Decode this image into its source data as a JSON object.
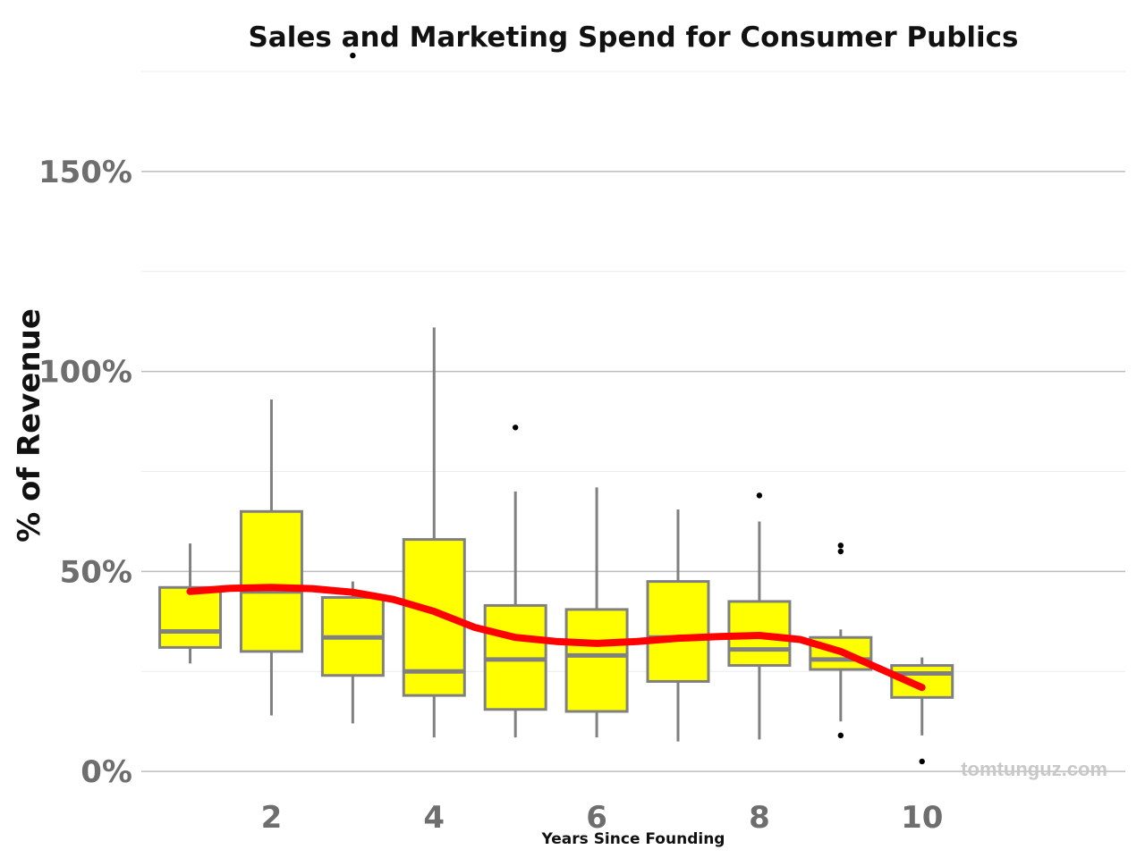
{
  "chart_data": {
    "type": "box",
    "title": "Sales and Marketing Spend for Consumer Publics",
    "xlabel": "Years Since Founding",
    "ylabel": "% of Revenue",
    "watermark": "tomtunguz.com",
    "xlim": [
      0.4,
      12.5
    ],
    "ylim": [
      -0.06,
      1.75
    ],
    "x_ticks": [
      2,
      4,
      6,
      8,
      10
    ],
    "x_tick_labels": [
      "2",
      "4",
      "6",
      "8",
      "10"
    ],
    "y_ticks": [
      0,
      0.5,
      1.0,
      1.5
    ],
    "y_tick_labels": [
      "0%",
      "50%",
      "100%",
      "150%"
    ],
    "y_minor_ticks": [
      0.25,
      0.75,
      1.25,
      1.75
    ],
    "grid": true,
    "colors": {
      "box_fill": "#ffff00",
      "box_edge": "#808080",
      "outlier": "#000000",
      "trend": "#ff0000",
      "grid": "#bdbdbd",
      "minor_grid": "#ececec"
    },
    "boxes": [
      {
        "x": 1,
        "whisker_low": 0.27,
        "q1": 0.31,
        "median": 0.35,
        "q3": 0.46,
        "whisker_high": 0.57,
        "outliers": []
      },
      {
        "x": 2,
        "whisker_low": 0.14,
        "q1": 0.3,
        "median": 0.45,
        "q3": 0.65,
        "whisker_high": 0.93,
        "outliers": []
      },
      {
        "x": 3,
        "whisker_low": 0.12,
        "q1": 0.24,
        "median": 0.335,
        "q3": 0.435,
        "whisker_high": 0.475,
        "outliers": [
          1.79
        ]
      },
      {
        "x": 4,
        "whisker_low": 0.085,
        "q1": 0.19,
        "median": 0.25,
        "q3": 0.58,
        "whisker_high": 1.11,
        "outliers": []
      },
      {
        "x": 5,
        "whisker_low": 0.085,
        "q1": 0.155,
        "median": 0.28,
        "q3": 0.415,
        "whisker_high": 0.7,
        "outliers": [
          0.86
        ]
      },
      {
        "x": 6,
        "whisker_low": 0.085,
        "q1": 0.15,
        "median": 0.29,
        "q3": 0.405,
        "whisker_high": 0.71,
        "outliers": []
      },
      {
        "x": 7,
        "whisker_low": 0.075,
        "q1": 0.225,
        "median": 0.335,
        "q3": 0.475,
        "whisker_high": 0.655,
        "outliers": []
      },
      {
        "x": 8,
        "whisker_low": 0.08,
        "q1": 0.265,
        "median": 0.305,
        "q3": 0.425,
        "whisker_high": 0.625,
        "outliers": [
          0.69
        ]
      },
      {
        "x": 9,
        "whisker_low": 0.125,
        "q1": 0.255,
        "median": 0.28,
        "q3": 0.335,
        "whisker_high": 0.355,
        "outliers": [
          0.565,
          0.55,
          0.09
        ]
      },
      {
        "x": 10,
        "whisker_low": 0.09,
        "q1": 0.185,
        "median": 0.245,
        "q3": 0.265,
        "whisker_high": 0.285,
        "outliers": [
          0.025
        ]
      }
    ],
    "trend": {
      "name": "smoothed trend",
      "x": [
        1,
        1.5,
        2,
        2.5,
        3,
        3.5,
        4,
        4.5,
        5,
        5.5,
        6,
        6.5,
        7,
        7.5,
        8,
        8.5,
        9,
        9.5,
        10
      ],
      "y": [
        0.45,
        0.458,
        0.46,
        0.457,
        0.448,
        0.43,
        0.4,
        0.36,
        0.335,
        0.325,
        0.32,
        0.325,
        0.333,
        0.337,
        0.34,
        0.33,
        0.3,
        0.255,
        0.21
      ]
    }
  }
}
